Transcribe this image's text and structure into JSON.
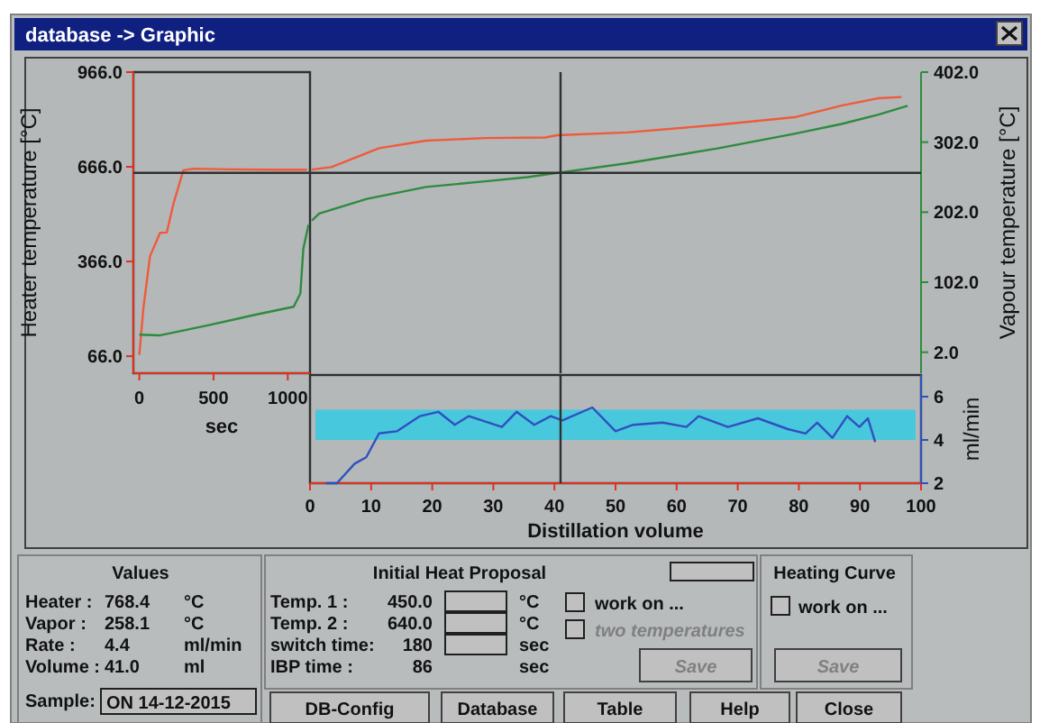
{
  "chart_data": [
    {
      "type": "line",
      "xlabel": "sec",
      "ylabel": "Heater temperature [°C]",
      "xlim": [
        -40,
        1150
      ],
      "xticks": [
        0,
        500,
        1000
      ],
      "ylim": [
        12,
        966
      ],
      "yticks": [
        {
          "value": 66,
          "label": "66.0"
        },
        {
          "value": 366,
          "label": "366.0"
        },
        {
          "value": 666,
          "label": "666.0"
        },
        {
          "value": 966,
          "label": "966.0"
        }
      ],
      "y2lim": [
        -28,
        402
      ],
      "tick_labels": "xy",
      "series": [
        {
          "color": "#f05a3c",
          "x": [
            0,
            27,
            72,
            140,
            185,
            230,
            297,
            365,
            600,
            900,
            1130
          ],
          "values": [
            70,
            216,
            383,
            457,
            458,
            549,
            655,
            660,
            658,
            657,
            657
          ]
        },
        {
          "color": "#2e8b3e",
          "axis": "y2",
          "x": [
            0,
            135,
            455,
            770,
            1040,
            1085,
            1105,
            1140
          ],
          "values": [
            27,
            26,
            40,
            55,
            67,
            86,
            150,
            184
          ]
        }
      ],
      "ref_lines": [
        {
          "axis": "y2",
          "value": 258.1,
          "color": "#303030"
        }
      ]
    },
    {
      "type": "line",
      "title": "database -> Graphic",
      "y2label": "Vapour temperature [°C]",
      "xlim": [
        0,
        100
      ],
      "ylim": [
        12,
        966
      ],
      "y2lim": [
        -28,
        402
      ],
      "y2ticks": [
        {
          "value": 2,
          "label": "2.0"
        },
        {
          "value": 102,
          "label": "102.0"
        },
        {
          "value": 202,
          "label": "202.0"
        },
        {
          "value": 302,
          "label": "302.0"
        },
        {
          "value": 402,
          "label": "402.0"
        }
      ],
      "tick_labels": "y2",
      "series": [
        {
          "color": "#f05a3c",
          "x": [
            0.3,
            3.5,
            11.3,
            19,
            28.7,
            38.5,
            40.4,
            52,
            66.7,
            79.3,
            87,
            92.9,
            96.8
          ],
          "values": [
            657,
            665,
            725,
            749,
            757,
            759,
            766,
            775,
            799,
            823,
            860,
            883,
            887
          ]
        },
        {
          "color": "#2e8b3e",
          "axis": "y2",
          "x": [
            0.3,
            1.5,
            9.3,
            19,
            28.7,
            35.6,
            40.4,
            52,
            66.7,
            79.3,
            87,
            92.9,
            97.8
          ],
          "values": [
            190,
            200,
            221,
            238,
            246,
            252,
            258,
            272,
            293,
            314,
            328,
            341,
            354
          ]
        }
      ],
      "ref_lines": [
        {
          "axis": "x",
          "value": 41,
          "color": "#303030"
        },
        {
          "axis": "y2",
          "value": 258.1,
          "color": "#303030"
        }
      ]
    },
    {
      "type": "line",
      "xlabel": "Distillation volume",
      "ylabel": "ml/min",
      "xlim": [
        0,
        100
      ],
      "xticks": [
        0,
        10,
        20,
        30,
        40,
        50,
        60,
        70,
        80,
        90,
        100
      ],
      "ylim": [
        2,
        7
      ],
      "yticks": [
        2,
        4,
        6
      ],
      "series": [
        {
          "color": "#3050c0",
          "x": [
            2.6,
            4.4,
            7.3,
            9.2,
            11.3,
            14.2,
            18,
            21,
            23.7,
            26,
            31.4,
            33.8,
            36.7,
            39.4,
            41.3,
            46.2,
            50,
            52.9,
            57.7,
            61.6,
            63.6,
            68.4,
            73.3,
            78.2,
            81.1,
            83,
            85.5,
            87.9,
            89.9,
            91.3,
            92.5
          ],
          "values": [
            2,
            2,
            2.9,
            3.2,
            4.3,
            4.4,
            5.1,
            5.3,
            4.7,
            5.1,
            4.6,
            5.3,
            4.7,
            5.1,
            4.9,
            5.5,
            4.4,
            4.7,
            4.8,
            4.6,
            5.1,
            4.6,
            5,
            4.5,
            4.3,
            4.8,
            4.1,
            5.1,
            4.6,
            5,
            3.9
          ]
        }
      ],
      "bands": [
        {
          "axis": "y",
          "from": 4,
          "to": 5.4,
          "color": "#48c8dc"
        }
      ],
      "ref_lines": [
        {
          "axis": "x",
          "value": 41,
          "color": "#303030"
        }
      ]
    },
    {
      "type": "other",
      "title": "Values",
      "annotations": [
        "Heater :",
        "768.4",
        "°C",
        "Vapor :",
        "258.1",
        "°C",
        "Rate :",
        "4.4",
        "ml/min",
        "Volume :",
        "41.0",
        "ml",
        "Sample:",
        "ON  14-12-2015"
      ]
    },
    {
      "type": "other",
      "title": "Initial Heat Proposal",
      "annotations": [
        "Temp. 1 :",
        "450.0",
        "°C",
        "Temp. 2 :",
        "640.0",
        "°C",
        "switch time:",
        "180",
        "sec",
        "IBP time :",
        "86",
        "sec",
        "work on ...",
        "two temperatures",
        "Save"
      ]
    },
    {
      "type": "other",
      "title": "Heating Curve",
      "annotations": [
        "work on ...",
        "Save"
      ]
    },
    {
      "type": "other",
      "annotations": [
        "DB-Config",
        "Database",
        "Table",
        "Help",
        "Close"
      ]
    }
  ]
}
